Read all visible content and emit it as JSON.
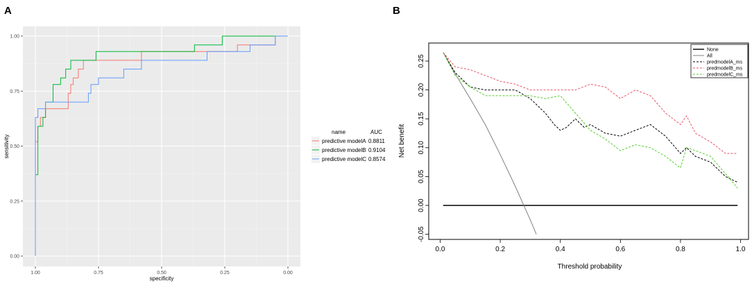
{
  "chart_data": [
    {
      "panel": "A",
      "type": "line",
      "subtype": "roc-step",
      "xlabel": "specificity",
      "ylabel": "sensitivity",
      "x_reversed": true,
      "xlim": [
        1.0,
        0.0
      ],
      "ylim": [
        0.0,
        1.0
      ],
      "xticks": [
        1.0,
        0.75,
        0.5,
        0.25,
        0.0
      ],
      "xtick_labels": [
        "1.00",
        "0.75",
        "0.50",
        "0.25",
        "0.00"
      ],
      "yticks": [
        0.0,
        0.25,
        0.5,
        0.75,
        1.0
      ],
      "ytick_labels": [
        "0.00",
        "0.25",
        "0.50",
        "0.75",
        "1.00"
      ],
      "grid": true,
      "legend": {
        "position": "right",
        "name_header": "name",
        "auc_header": "AUC"
      },
      "series": [
        {
          "name": "predictive modelA",
          "auc": "0.8811",
          "color": "#f8766d",
          "points": [
            [
              1.0,
              0.0
            ],
            [
              1.0,
              0.52
            ],
            [
              0.99,
              0.52
            ],
            [
              0.99,
              0.59
            ],
            [
              0.98,
              0.59
            ],
            [
              0.98,
              0.63
            ],
            [
              0.96,
              0.63
            ],
            [
              0.96,
              0.67
            ],
            [
              0.9,
              0.67
            ],
            [
              0.87,
              0.67
            ],
            [
              0.87,
              0.74
            ],
            [
              0.86,
              0.74
            ],
            [
              0.86,
              0.78
            ],
            [
              0.85,
              0.78
            ],
            [
              0.85,
              0.81
            ],
            [
              0.83,
              0.81
            ],
            [
              0.83,
              0.85
            ],
            [
              0.81,
              0.85
            ],
            [
              0.81,
              0.89
            ],
            [
              0.58,
              0.89
            ],
            [
              0.58,
              0.93
            ],
            [
              0.2,
              0.93
            ],
            [
              0.2,
              0.96
            ],
            [
              0.05,
              0.96
            ],
            [
              0.05,
              1.0
            ],
            [
              0.0,
              1.0
            ]
          ]
        },
        {
          "name": "predictive modelB",
          "auc": "0.9104",
          "color": "#00ba38",
          "points": [
            [
              1.0,
              0.0
            ],
            [
              1.0,
              0.37
            ],
            [
              0.99,
              0.37
            ],
            [
              0.99,
              0.59
            ],
            [
              0.97,
              0.59
            ],
            [
              0.97,
              0.63
            ],
            [
              0.96,
              0.63
            ],
            [
              0.96,
              0.7
            ],
            [
              0.93,
              0.7
            ],
            [
              0.93,
              0.78
            ],
            [
              0.9,
              0.78
            ],
            [
              0.9,
              0.81
            ],
            [
              0.88,
              0.81
            ],
            [
              0.88,
              0.85
            ],
            [
              0.86,
              0.85
            ],
            [
              0.86,
              0.89
            ],
            [
              0.76,
              0.89
            ],
            [
              0.76,
              0.93
            ],
            [
              0.37,
              0.93
            ],
            [
              0.37,
              0.96
            ],
            [
              0.26,
              0.96
            ],
            [
              0.26,
              1.0
            ],
            [
              0.0,
              1.0
            ]
          ]
        },
        {
          "name": "predictive modelC",
          "auc": "0.8574",
          "color": "#619cff",
          "points": [
            [
              1.0,
              0.0
            ],
            [
              1.0,
              0.63
            ],
            [
              0.99,
              0.63
            ],
            [
              0.99,
              0.67
            ],
            [
              0.96,
              0.67
            ],
            [
              0.96,
              0.7
            ],
            [
              0.79,
              0.7
            ],
            [
              0.79,
              0.74
            ],
            [
              0.78,
              0.74
            ],
            [
              0.78,
              0.78
            ],
            [
              0.75,
              0.78
            ],
            [
              0.75,
              0.81
            ],
            [
              0.65,
              0.81
            ],
            [
              0.65,
              0.85
            ],
            [
              0.58,
              0.85
            ],
            [
              0.58,
              0.89
            ],
            [
              0.32,
              0.89
            ],
            [
              0.32,
              0.93
            ],
            [
              0.15,
              0.93
            ],
            [
              0.15,
              0.96
            ],
            [
              0.05,
              0.96
            ],
            [
              0.05,
              1.0
            ],
            [
              0.0,
              1.0
            ]
          ]
        }
      ]
    },
    {
      "panel": "B",
      "type": "line",
      "subtype": "decision-curve",
      "xlabel": "Threshold probability",
      "ylabel": "Net benefit",
      "xlim": [
        0.0,
        1.0
      ],
      "ylim": [
        -0.05,
        0.27
      ],
      "xticks": [
        0.0,
        0.2,
        0.4,
        0.6,
        0.8,
        1.0
      ],
      "xtick_labels": [
        "0.0",
        "0.2",
        "0.4",
        "0.6",
        "0.8",
        "1.0"
      ],
      "yticks": [
        -0.05,
        0.0,
        0.05,
        0.1,
        0.15,
        0.2,
        0.25
      ],
      "ytick_labels": [
        "-0.05",
        "0.00",
        "0.05",
        "0.10",
        "0.15",
        "0.20",
        "0.25"
      ],
      "grid": false,
      "legend": {
        "position": "top-right"
      },
      "series": [
        {
          "name": "None",
          "color": "#000000",
          "style": "solid",
          "x": [
            0.01,
            0.99
          ],
          "y": [
            0.0,
            0.0
          ]
        },
        {
          "name": "All",
          "color": "#808080",
          "style": "solid",
          "x": [
            0.01,
            0.05,
            0.1,
            0.15,
            0.2,
            0.25,
            0.3,
            0.32
          ],
          "y": [
            0.265,
            0.228,
            0.185,
            0.14,
            0.088,
            0.033,
            -0.025,
            -0.05
          ]
        },
        {
          "name": "predmodelA_ms",
          "color": "#000000",
          "style": "dashed",
          "x": [
            0.01,
            0.05,
            0.1,
            0.15,
            0.2,
            0.25,
            0.3,
            0.35,
            0.38,
            0.4,
            0.42,
            0.45,
            0.48,
            0.5,
            0.55,
            0.6,
            0.65,
            0.7,
            0.75,
            0.8,
            0.82,
            0.85,
            0.9,
            0.95,
            0.99
          ],
          "y": [
            0.265,
            0.23,
            0.205,
            0.2,
            0.2,
            0.2,
            0.185,
            0.16,
            0.14,
            0.13,
            0.135,
            0.15,
            0.135,
            0.14,
            0.125,
            0.12,
            0.13,
            0.14,
            0.12,
            0.09,
            0.1,
            0.085,
            0.075,
            0.05,
            0.04
          ]
        },
        {
          "name": "predmodelB_ms",
          "color": "#e8536b",
          "style": "dashed",
          "x": [
            0.01,
            0.05,
            0.1,
            0.15,
            0.2,
            0.25,
            0.3,
            0.35,
            0.4,
            0.45,
            0.5,
            0.55,
            0.6,
            0.65,
            0.7,
            0.75,
            0.8,
            0.82,
            0.85,
            0.9,
            0.95,
            0.99
          ],
          "y": [
            0.265,
            0.24,
            0.235,
            0.225,
            0.215,
            0.21,
            0.2,
            0.2,
            0.2,
            0.2,
            0.21,
            0.205,
            0.185,
            0.2,
            0.19,
            0.16,
            0.14,
            0.155,
            0.125,
            0.11,
            0.09,
            0.09
          ]
        },
        {
          "name": "predmodelC_ms",
          "color": "#55cc2c",
          "style": "dashed",
          "x": [
            0.01,
            0.05,
            0.1,
            0.15,
            0.2,
            0.25,
            0.3,
            0.35,
            0.4,
            0.45,
            0.5,
            0.55,
            0.6,
            0.65,
            0.7,
            0.75,
            0.8,
            0.82,
            0.85,
            0.9,
            0.95,
            0.99
          ],
          "y": [
            0.265,
            0.225,
            0.205,
            0.19,
            0.19,
            0.19,
            0.19,
            0.185,
            0.19,
            0.16,
            0.13,
            0.115,
            0.095,
            0.105,
            0.1,
            0.085,
            0.065,
            0.1,
            0.095,
            0.085,
            0.055,
            0.03
          ]
        }
      ]
    }
  ]
}
